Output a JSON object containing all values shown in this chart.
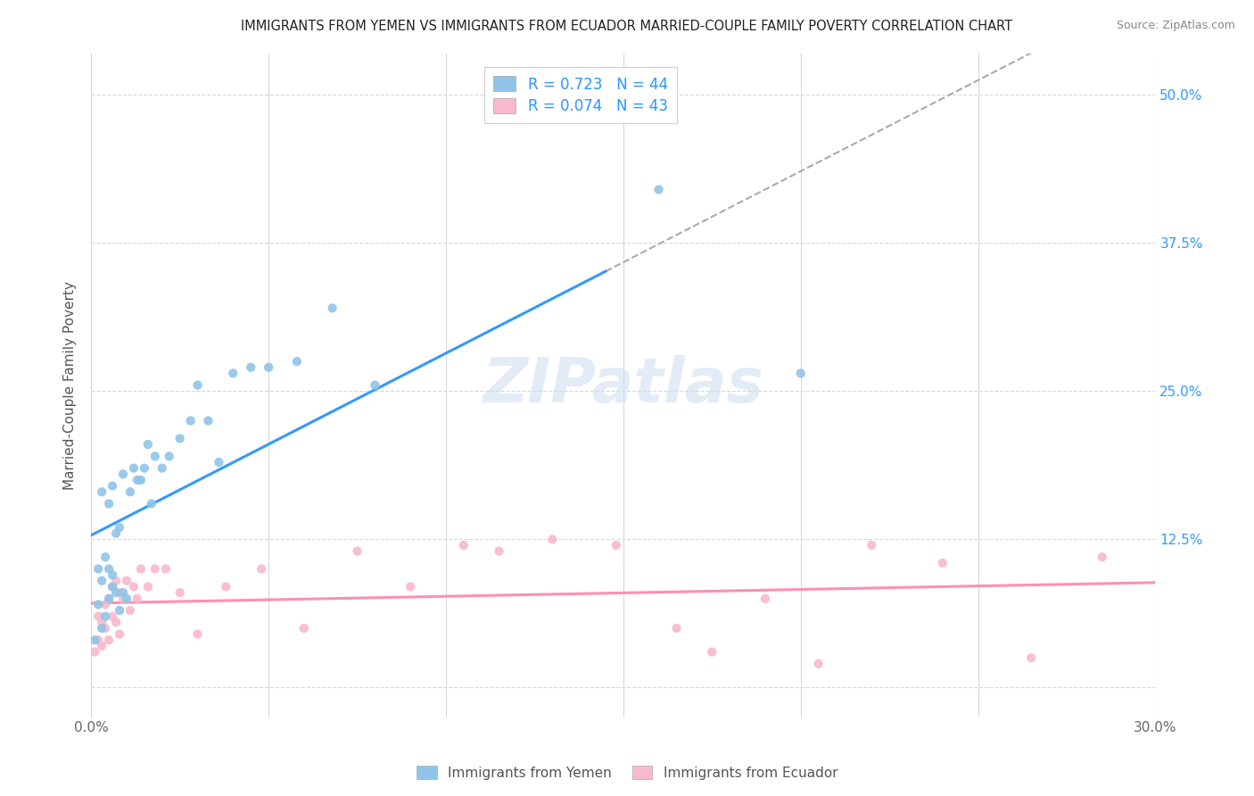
{
  "title": "IMMIGRANTS FROM YEMEN VS IMMIGRANTS FROM ECUADOR MARRIED-COUPLE FAMILY POVERTY CORRELATION CHART",
  "source": "Source: ZipAtlas.com",
  "xlabel": "",
  "ylabel": "Married-Couple Family Poverty",
  "xlim": [
    0.0,
    0.3
  ],
  "ylim": [
    -0.025,
    0.535
  ],
  "xticks": [
    0.0,
    0.05,
    0.1,
    0.15,
    0.2,
    0.25,
    0.3
  ],
  "xticklabels": [
    "0.0%",
    "",
    "",
    "",
    "",
    "",
    "30.0%"
  ],
  "yticks": [
    0.0,
    0.125,
    0.25,
    0.375,
    0.5
  ],
  "yticklabels": [
    "",
    "12.5%",
    "25.0%",
    "37.5%",
    "50.0%"
  ],
  "yemen_color": "#8fc4e8",
  "ecuador_color": "#f9b8cc",
  "yemen_line_color": "#3399FF",
  "ecuador_line_color": "#FF8FAF",
  "dashed_line_color": "#aaaaaa",
  "legend_label_yemen": "R = 0.723   N = 44",
  "legend_label_ecuador": "R = 0.074   N = 43",
  "legend_bottom_yemen": "Immigrants from Yemen",
  "legend_bottom_ecuador": "Immigrants from Ecuador",
  "watermark": "ZIPatlas",
  "yemen_x": [
    0.001,
    0.002,
    0.002,
    0.003,
    0.003,
    0.003,
    0.004,
    0.004,
    0.005,
    0.005,
    0.005,
    0.006,
    0.006,
    0.006,
    0.007,
    0.007,
    0.008,
    0.008,
    0.009,
    0.009,
    0.01,
    0.011,
    0.012,
    0.013,
    0.014,
    0.015,
    0.016,
    0.017,
    0.018,
    0.02,
    0.022,
    0.025,
    0.028,
    0.03,
    0.033,
    0.036,
    0.04,
    0.045,
    0.05,
    0.058,
    0.068,
    0.08,
    0.16,
    0.2
  ],
  "yemen_y": [
    0.04,
    0.07,
    0.1,
    0.05,
    0.09,
    0.165,
    0.06,
    0.11,
    0.075,
    0.1,
    0.155,
    0.085,
    0.095,
    0.17,
    0.08,
    0.13,
    0.065,
    0.135,
    0.08,
    0.18,
    0.075,
    0.165,
    0.185,
    0.175,
    0.175,
    0.185,
    0.205,
    0.155,
    0.195,
    0.185,
    0.195,
    0.21,
    0.225,
    0.255,
    0.225,
    0.19,
    0.265,
    0.27,
    0.27,
    0.275,
    0.32,
    0.255,
    0.42,
    0.265
  ],
  "ecuador_x": [
    0.001,
    0.002,
    0.002,
    0.003,
    0.003,
    0.004,
    0.004,
    0.005,
    0.005,
    0.006,
    0.006,
    0.007,
    0.007,
    0.008,
    0.008,
    0.009,
    0.01,
    0.011,
    0.012,
    0.013,
    0.014,
    0.016,
    0.018,
    0.021,
    0.025,
    0.03,
    0.038,
    0.048,
    0.06,
    0.075,
    0.09,
    0.105,
    0.115,
    0.13,
    0.148,
    0.165,
    0.175,
    0.19,
    0.205,
    0.22,
    0.24,
    0.265,
    0.285
  ],
  "ecuador_y": [
    0.03,
    0.04,
    0.06,
    0.035,
    0.055,
    0.05,
    0.07,
    0.04,
    0.075,
    0.06,
    0.085,
    0.055,
    0.09,
    0.045,
    0.08,
    0.075,
    0.09,
    0.065,
    0.085,
    0.075,
    0.1,
    0.085,
    0.1,
    0.1,
    0.08,
    0.045,
    0.085,
    0.1,
    0.05,
    0.115,
    0.085,
    0.12,
    0.115,
    0.125,
    0.12,
    0.05,
    0.03,
    0.075,
    0.02,
    0.12,
    0.105,
    0.025,
    0.11
  ]
}
